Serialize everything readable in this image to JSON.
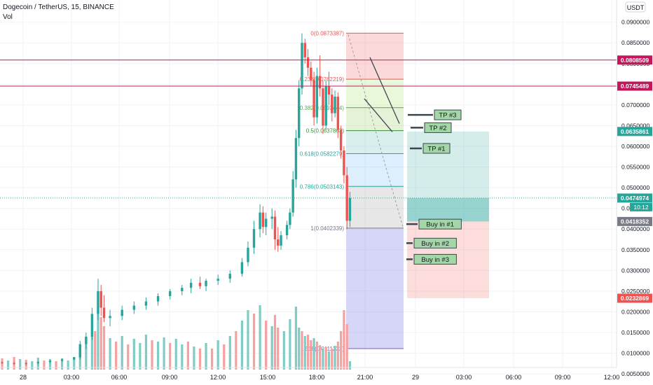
{
  "header": {
    "title": "Dogecoin / TetherUS, 15, BINANCE",
    "vol_label": "Vol",
    "currency": "USDT",
    "countdown": "10:12"
  },
  "colors": {
    "up": "#26a69a",
    "down": "#ef5350",
    "vol_up": "#80cbc4",
    "vol_down": "#f7a0a0",
    "level_red": "#c2185b",
    "current": "#26a69a",
    "fib_line": "#888888"
  },
  "axes": {
    "price_ticks": [
      "0.0900000",
      "0.0850000",
      "0.0800000",
      "0.0750000",
      "0.0700000",
      "0.0650000",
      "0.0600000",
      "0.0550000",
      "0.0500000",
      "0.0450000",
      "0.0400000",
      "0.0350000",
      "0.0300000",
      "0.0250000",
      "0.0200000",
      "0.0150000",
      "0.0100000",
      "0.0050000"
    ],
    "time_ticks": [
      "28",
      "03:00",
      "06:00",
      "09:00",
      "12:00",
      "15:00",
      "18:00",
      "21:00",
      "29",
      "03:00",
      "06:00",
      "09:00",
      "12:00"
    ]
  },
  "price_tags": [
    {
      "id": "level-1",
      "label": "0.0808509",
      "value": 0.0808509,
      "color": "#c2185b"
    },
    {
      "id": "level-2",
      "label": "0.0745489",
      "value": 0.0745489,
      "color": "#c2185b"
    },
    {
      "id": "tp-zone-top",
      "label": "0.0635861",
      "value": 0.0635861,
      "color": "#26a69a"
    },
    {
      "id": "current-price",
      "label": "0.0474974",
      "value": 0.0474974,
      "color": "#26a69a"
    },
    {
      "id": "entry",
      "label": "0.0418352",
      "value": 0.0418352,
      "color": "#787b86"
    },
    {
      "id": "stop",
      "label": "0.0232869",
      "value": 0.0232869,
      "color": "#ef5350"
    }
  ],
  "fib_levels": [
    {
      "label": "0(0.0873387)",
      "value": 0.0873387,
      "color": "#ef5350"
    },
    {
      "label": "0.236(0.0762219)",
      "value": 0.0762219,
      "color": "#ef5350"
    },
    {
      "label": "0.382(0.0693444)",
      "value": 0.0693444,
      "color": "#4caf50"
    },
    {
      "label": "0.5(0.0637863)",
      "value": 0.0637863,
      "color": "#388e3c"
    },
    {
      "label": "0.618(0.0582279)",
      "value": 0.0582279,
      "color": "#26a69a"
    },
    {
      "label": "0.786(0.0503143)",
      "value": 0.0503143,
      "color": "#26a69a"
    },
    {
      "label": "1(0.0402339)",
      "value": 0.0402339,
      "color": "#787b86"
    },
    {
      "label": "1.618(0.0111232)",
      "value": 0.0111232,
      "color": "#7e57c2"
    }
  ],
  "annotations": [
    {
      "label": "TP #3",
      "price": 0.0676
    },
    {
      "label": "TP #2",
      "price": 0.0645
    },
    {
      "label": "TP #1",
      "price": 0.0595
    },
    {
      "label": "Buy in #1",
      "price": 0.0412
    },
    {
      "label": "Buy in #2",
      "price": 0.0366
    },
    {
      "label": "Buy in #3",
      "price": 0.0327
    }
  ],
  "chart_data": {
    "type": "candlestick",
    "title": "Dogecoin / TetherUS, 15, BINANCE",
    "x_unit": "15-minute bars from 28 00:00",
    "ylim": [
      0.0035,
      0.0935
    ],
    "candles": [
      {
        "x": 0,
        "o": 0.0078,
        "h": 0.008,
        "l": 0.0074,
        "c": 0.0076
      },
      {
        "x": 4,
        "o": 0.0076,
        "h": 0.0079,
        "l": 0.0072,
        "c": 0.0074
      },
      {
        "x": 8,
        "o": 0.0074,
        "h": 0.0078,
        "l": 0.0071,
        "c": 0.0076
      },
      {
        "x": 12,
        "o": 0.0076,
        "h": 0.008,
        "l": 0.0073,
        "c": 0.0079
      },
      {
        "x": 16,
        "o": 0.0079,
        "h": 0.0083,
        "l": 0.0076,
        "c": 0.0082
      },
      {
        "x": 20,
        "o": 0.0082,
        "h": 0.0087,
        "l": 0.0079,
        "c": 0.0085
      },
      {
        "x": 24,
        "o": 0.0085,
        "h": 0.0091,
        "l": 0.0083,
        "c": 0.009
      },
      {
        "x": 26,
        "o": 0.009,
        "h": 0.013,
        "l": 0.0085,
        "c": 0.0122
      },
      {
        "x": 28,
        "o": 0.0122,
        "h": 0.015,
        "l": 0.011,
        "c": 0.014
      },
      {
        "x": 30,
        "o": 0.014,
        "h": 0.021,
        "l": 0.0132,
        "c": 0.0195
      },
      {
        "x": 32,
        "o": 0.0195,
        "h": 0.028,
        "l": 0.018,
        "c": 0.025
      },
      {
        "x": 33,
        "o": 0.025,
        "h": 0.0265,
        "l": 0.019,
        "c": 0.021
      },
      {
        "x": 34,
        "o": 0.021,
        "h": 0.024,
        "l": 0.0175,
        "c": 0.0185
      },
      {
        "x": 36,
        "o": 0.0185,
        "h": 0.0205,
        "l": 0.0165,
        "c": 0.019
      },
      {
        "x": 40,
        "o": 0.019,
        "h": 0.0215,
        "l": 0.018,
        "c": 0.0205
      },
      {
        "x": 44,
        "o": 0.0205,
        "h": 0.0225,
        "l": 0.0195,
        "c": 0.0215
      },
      {
        "x": 48,
        "o": 0.0215,
        "h": 0.0235,
        "l": 0.0205,
        "c": 0.0225
      },
      {
        "x": 52,
        "o": 0.0225,
        "h": 0.0245,
        "l": 0.0215,
        "c": 0.0238
      },
      {
        "x": 56,
        "o": 0.0238,
        "h": 0.0255,
        "l": 0.023,
        "c": 0.025
      },
      {
        "x": 60,
        "o": 0.025,
        "h": 0.0265,
        "l": 0.024,
        "c": 0.0258
      },
      {
        "x": 63,
        "o": 0.0258,
        "h": 0.028,
        "l": 0.0245,
        "c": 0.027
      },
      {
        "x": 66,
        "o": 0.027,
        "h": 0.0285,
        "l": 0.0255,
        "c": 0.0262
      },
      {
        "x": 68,
        "o": 0.0262,
        "h": 0.028,
        "l": 0.025,
        "c": 0.0275
      },
      {
        "x": 72,
        "o": 0.0275,
        "h": 0.029,
        "l": 0.0265,
        "c": 0.028
      },
      {
        "x": 76,
        "o": 0.028,
        "h": 0.03,
        "l": 0.027,
        "c": 0.0292
      },
      {
        "x": 80,
        "o": 0.0292,
        "h": 0.033,
        "l": 0.0285,
        "c": 0.032
      },
      {
        "x": 82,
        "o": 0.032,
        "h": 0.037,
        "l": 0.031,
        "c": 0.0355
      },
      {
        "x": 84,
        "o": 0.0355,
        "h": 0.042,
        "l": 0.034,
        "c": 0.04
      },
      {
        "x": 86,
        "o": 0.04,
        "h": 0.046,
        "l": 0.038,
        "c": 0.044
      },
      {
        "x": 87,
        "o": 0.044,
        "h": 0.0455,
        "l": 0.039,
        "c": 0.0405
      },
      {
        "x": 88,
        "o": 0.0405,
        "h": 0.044,
        "l": 0.0385,
        "c": 0.0425
      },
      {
        "x": 90,
        "o": 0.0425,
        "h": 0.045,
        "l": 0.04,
        "c": 0.043
      },
      {
        "x": 91,
        "o": 0.043,
        "h": 0.0445,
        "l": 0.035,
        "c": 0.0375
      },
      {
        "x": 92,
        "o": 0.0375,
        "h": 0.0405,
        "l": 0.0345,
        "c": 0.036
      },
      {
        "x": 93,
        "o": 0.036,
        "h": 0.0395,
        "l": 0.035,
        "c": 0.0385
      },
      {
        "x": 95,
        "o": 0.0385,
        "h": 0.042,
        "l": 0.0375,
        "c": 0.041
      },
      {
        "x": 96,
        "o": 0.041,
        "h": 0.045,
        "l": 0.04,
        "c": 0.044
      },
      {
        "x": 97,
        "o": 0.044,
        "h": 0.054,
        "l": 0.043,
        "c": 0.052
      },
      {
        "x": 98,
        "o": 0.052,
        "h": 0.064,
        "l": 0.05,
        "c": 0.062
      },
      {
        "x": 99,
        "o": 0.062,
        "h": 0.076,
        "l": 0.06,
        "c": 0.074
      },
      {
        "x": 100,
        "o": 0.074,
        "h": 0.0873,
        "l": 0.0725,
        "c": 0.085
      },
      {
        "x": 101,
        "o": 0.085,
        "h": 0.086,
        "l": 0.08,
        "c": 0.0815
      },
      {
        "x": 102,
        "o": 0.0815,
        "h": 0.0835,
        "l": 0.077,
        "c": 0.079
      },
      {
        "x": 103,
        "o": 0.079,
        "h": 0.0805,
        "l": 0.0745,
        "c": 0.076
      },
      {
        "x": 104,
        "o": 0.076,
        "h": 0.078,
        "l": 0.065,
        "c": 0.067
      },
      {
        "x": 105,
        "o": 0.067,
        "h": 0.079,
        "l": 0.0655,
        "c": 0.077
      },
      {
        "x": 106,
        "o": 0.077,
        "h": 0.082,
        "l": 0.072,
        "c": 0.074
      },
      {
        "x": 107,
        "o": 0.074,
        "h": 0.076,
        "l": 0.063,
        "c": 0.065
      },
      {
        "x": 108,
        "o": 0.065,
        "h": 0.076,
        "l": 0.064,
        "c": 0.0745
      },
      {
        "x": 109,
        "o": 0.0745,
        "h": 0.078,
        "l": 0.07,
        "c": 0.0725
      },
      {
        "x": 110,
        "o": 0.0725,
        "h": 0.074,
        "l": 0.066,
        "c": 0.068
      },
      {
        "x": 111,
        "o": 0.068,
        "h": 0.0735,
        "l": 0.067,
        "c": 0.072
      },
      {
        "x": 112,
        "o": 0.072,
        "h": 0.073,
        "l": 0.062,
        "c": 0.064
      },
      {
        "x": 113,
        "o": 0.064,
        "h": 0.065,
        "l": 0.057,
        "c": 0.059
      },
      {
        "x": 114,
        "o": 0.059,
        "h": 0.06,
        "l": 0.051,
        "c": 0.053
      },
      {
        "x": 115,
        "o": 0.053,
        "h": 0.055,
        "l": 0.04,
        "c": 0.042
      },
      {
        "x": 116,
        "o": 0.042,
        "h": 0.049,
        "l": 0.0405,
        "c": 0.0475
      }
    ],
    "volume": [
      {
        "x": 0,
        "v": 0.16,
        "up": false
      },
      {
        "x": 2,
        "v": 0.13,
        "up": true
      },
      {
        "x": 4,
        "v": 0.18,
        "up": false
      },
      {
        "x": 6,
        "v": 0.15,
        "up": true
      },
      {
        "x": 8,
        "v": 0.14,
        "up": false
      },
      {
        "x": 10,
        "v": 0.12,
        "up": true
      },
      {
        "x": 12,
        "v": 0.17,
        "up": true
      },
      {
        "x": 14,
        "v": 0.13,
        "up": false
      },
      {
        "x": 16,
        "v": 0.15,
        "up": true
      },
      {
        "x": 18,
        "v": 0.12,
        "up": false
      },
      {
        "x": 20,
        "v": 0.16,
        "up": true
      },
      {
        "x": 22,
        "v": 0.13,
        "up": true
      },
      {
        "x": 24,
        "v": 0.18,
        "up": true
      },
      {
        "x": 26,
        "v": 0.3,
        "up": true
      },
      {
        "x": 28,
        "v": 0.38,
        "up": true
      },
      {
        "x": 30,
        "v": 0.5,
        "up": true
      },
      {
        "x": 31,
        "v": 0.55,
        "up": false
      },
      {
        "x": 32,
        "v": 0.85,
        "up": true
      },
      {
        "x": 33,
        "v": 0.75,
        "up": false
      },
      {
        "x": 34,
        "v": 0.62,
        "up": false
      },
      {
        "x": 36,
        "v": 0.45,
        "up": true
      },
      {
        "x": 38,
        "v": 0.4,
        "up": false
      },
      {
        "x": 40,
        "v": 0.48,
        "up": true
      },
      {
        "x": 42,
        "v": 0.36,
        "up": false
      },
      {
        "x": 44,
        "v": 0.44,
        "up": true
      },
      {
        "x": 46,
        "v": 0.38,
        "up": true
      },
      {
        "x": 48,
        "v": 0.5,
        "up": true
      },
      {
        "x": 50,
        "v": 0.42,
        "up": false
      },
      {
        "x": 52,
        "v": 0.4,
        "up": true
      },
      {
        "x": 54,
        "v": 0.46,
        "up": true
      },
      {
        "x": 56,
        "v": 0.38,
        "up": false
      },
      {
        "x": 58,
        "v": 0.44,
        "up": true
      },
      {
        "x": 60,
        "v": 0.36,
        "up": true
      },
      {
        "x": 62,
        "v": 0.4,
        "up": false
      },
      {
        "x": 64,
        "v": 0.33,
        "up": true
      },
      {
        "x": 66,
        "v": 0.3,
        "up": false
      },
      {
        "x": 68,
        "v": 0.38,
        "up": true
      },
      {
        "x": 70,
        "v": 0.3,
        "up": false
      },
      {
        "x": 72,
        "v": 0.42,
        "up": true
      },
      {
        "x": 74,
        "v": 0.36,
        "up": false
      },
      {
        "x": 76,
        "v": 0.48,
        "up": true
      },
      {
        "x": 78,
        "v": 0.55,
        "up": false
      },
      {
        "x": 80,
        "v": 0.7,
        "up": true
      },
      {
        "x": 82,
        "v": 0.85,
        "up": true
      },
      {
        "x": 84,
        "v": 0.8,
        "up": false
      },
      {
        "x": 86,
        "v": 0.92,
        "up": true
      },
      {
        "x": 88,
        "v": 0.7,
        "up": false
      },
      {
        "x": 90,
        "v": 0.62,
        "up": true
      },
      {
        "x": 91,
        "v": 0.78,
        "up": false
      },
      {
        "x": 92,
        "v": 0.6,
        "up": false
      },
      {
        "x": 94,
        "v": 0.55,
        "up": true
      },
      {
        "x": 96,
        "v": 0.72,
        "up": true
      },
      {
        "x": 98,
        "v": 0.9,
        "up": true
      },
      {
        "x": 99,
        "v": 0.6,
        "up": true
      },
      {
        "x": 100,
        "v": 0.55,
        "up": false
      },
      {
        "x": 101,
        "v": 0.48,
        "up": true
      },
      {
        "x": 102,
        "v": 0.5,
        "up": false
      },
      {
        "x": 103,
        "v": 0.42,
        "up": false
      },
      {
        "x": 104,
        "v": 0.45,
        "up": true
      },
      {
        "x": 105,
        "v": 0.4,
        "up": false
      },
      {
        "x": 106,
        "v": 0.35,
        "up": false
      },
      {
        "x": 107,
        "v": 0.3,
        "up": true
      },
      {
        "x": 108,
        "v": 0.32,
        "up": false
      },
      {
        "x": 109,
        "v": 0.26,
        "up": true
      },
      {
        "x": 110,
        "v": 0.3,
        "up": false
      },
      {
        "x": 111,
        "v": 0.34,
        "up": true
      },
      {
        "x": 112,
        "v": 0.4,
        "up": false
      },
      {
        "x": 113,
        "v": 0.55,
        "up": false
      },
      {
        "x": 114,
        "v": 0.85,
        "up": false
      },
      {
        "x": 115,
        "v": 0.65,
        "up": false
      },
      {
        "x": 116,
        "v": 0.12,
        "up": true
      }
    ]
  }
}
